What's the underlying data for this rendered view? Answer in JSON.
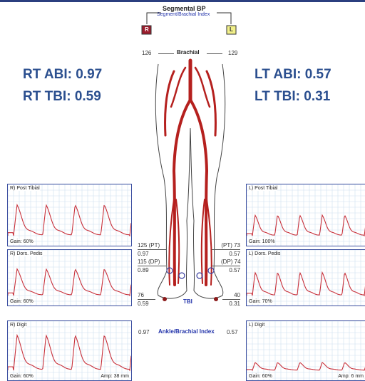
{
  "header": {
    "title": "Segmental BP",
    "subtitle": "Segment/Brachial Index",
    "right_marker": "R",
    "left_marker": "L"
  },
  "brachial": {
    "right": 126,
    "label": "Brachial",
    "left": 129
  },
  "summary": {
    "rt_abi": "RT ABI: 0.97",
    "rt_tbi": "RT TBI: 0.59",
    "lt_abi": "LT ABI: 0.57",
    "lt_tbi": "LT TBI: 0.31"
  },
  "panels": {
    "right": [
      {
        "title": "R) Post Tibial",
        "gain": "Gain: 60%"
      },
      {
        "title": "R) Dors. Pedis",
        "gain": "Gain: 60%"
      },
      {
        "title": "R) Digit",
        "gain": "Gain: 60%",
        "amp": "Amp: 38 mm"
      }
    ],
    "left": [
      {
        "title": "L) Post Tibial",
        "gain": "Gain: 100%"
      },
      {
        "title": "L) Dors. Pedis",
        "gain": "Gain: 70%"
      },
      {
        "title": "L) Digit",
        "gain": "Gain: 60%",
        "amp": "Amp: 6 mm"
      }
    ]
  },
  "pressures": {
    "right": {
      "pt": "125 (PT)",
      "pt_index": 0.97,
      "dp": "115 (DP)",
      "dp_index": 0.89,
      "toe": 76,
      "toe_index": 0.59
    },
    "left": {
      "pt": "(PT) 73",
      "pt_index": 0.57,
      "dp": "(DP) 74",
      "dp_index": 0.57,
      "toe": 40,
      "toe_index": 0.31
    },
    "tbi_label": "TBI"
  },
  "abi": {
    "right": 0.97,
    "label": "Ankle/Brachial Index",
    "left": 0.57
  }
}
